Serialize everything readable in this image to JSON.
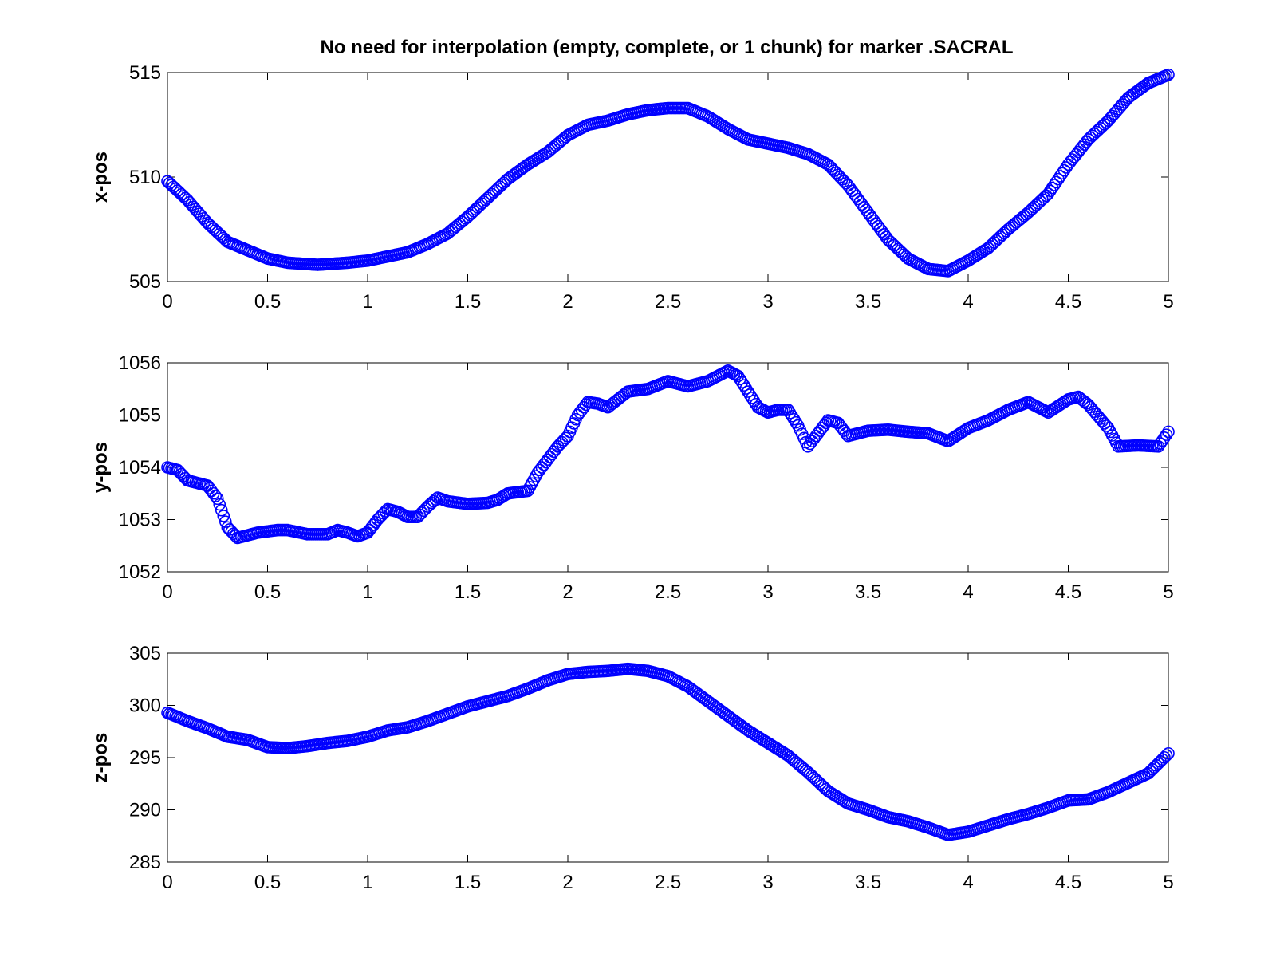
{
  "title": "No need for interpolation (empty, complete, or 1 chunk) for marker .SACRAL",
  "colors": {
    "series": "#0000ff",
    "axes": "#000000",
    "background": "#ffffff"
  },
  "chart_data": [
    {
      "type": "scatter",
      "ylabel": "x-pos",
      "xlim": [
        0,
        5
      ],
      "ylim": [
        505,
        515
      ],
      "xticks": [
        "0",
        "0.5",
        "1",
        "1.5",
        "2",
        "2.5",
        "3",
        "3.5",
        "4",
        "4.5",
        "5"
      ],
      "yticks": [
        "505",
        "510",
        "515"
      ],
      "grid": false,
      "points": [
        [
          0,
          509.8
        ],
        [
          0.1,
          508.9
        ],
        [
          0.2,
          507.8
        ],
        [
          0.3,
          506.9
        ],
        [
          0.4,
          506.5
        ],
        [
          0.5,
          506.1
        ],
        [
          0.6,
          505.9
        ],
        [
          0.75,
          505.8
        ],
        [
          0.9,
          505.9
        ],
        [
          1.0,
          506.0
        ],
        [
          1.1,
          506.2
        ],
        [
          1.2,
          506.4
        ],
        [
          1.3,
          506.8
        ],
        [
          1.4,
          507.3
        ],
        [
          1.5,
          508.1
        ],
        [
          1.6,
          509.0
        ],
        [
          1.7,
          509.9
        ],
        [
          1.8,
          510.6
        ],
        [
          1.9,
          511.2
        ],
        [
          2.0,
          512.0
        ],
        [
          2.1,
          512.5
        ],
        [
          2.2,
          512.7
        ],
        [
          2.3,
          513.0
        ],
        [
          2.4,
          513.2
        ],
        [
          2.5,
          513.3
        ],
        [
          2.6,
          513.3
        ],
        [
          2.7,
          512.9
        ],
        [
          2.8,
          512.3
        ],
        [
          2.9,
          511.8
        ],
        [
          3.0,
          511.6
        ],
        [
          3.1,
          511.4
        ],
        [
          3.2,
          511.1
        ],
        [
          3.3,
          510.6
        ],
        [
          3.4,
          509.6
        ],
        [
          3.5,
          508.3
        ],
        [
          3.6,
          507.0
        ],
        [
          3.7,
          506.1
        ],
        [
          3.8,
          505.6
        ],
        [
          3.9,
          505.5
        ],
        [
          4.0,
          506.0
        ],
        [
          4.1,
          506.6
        ],
        [
          4.2,
          507.5
        ],
        [
          4.3,
          508.3
        ],
        [
          4.4,
          509.2
        ],
        [
          4.5,
          510.6
        ],
        [
          4.6,
          511.8
        ],
        [
          4.7,
          512.7
        ],
        [
          4.8,
          513.8
        ],
        [
          4.9,
          514.5
        ],
        [
          5.0,
          514.9
        ]
      ]
    },
    {
      "type": "scatter",
      "ylabel": "y-pos",
      "xlim": [
        0,
        5
      ],
      "ylim": [
        1052,
        1056
      ],
      "xticks": [
        "0",
        "0.5",
        "1",
        "1.5",
        "2",
        "2.5",
        "3",
        "3.5",
        "4",
        "4.5",
        "5"
      ],
      "yticks": [
        "1052",
        "1053",
        "1054",
        "1055",
        "1056"
      ],
      "grid": false,
      "points": [
        [
          0,
          1054.0
        ],
        [
          0.05,
          1053.95
        ],
        [
          0.1,
          1053.75
        ],
        [
          0.15,
          1053.7
        ],
        [
          0.2,
          1053.65
        ],
        [
          0.25,
          1053.4
        ],
        [
          0.3,
          1052.85
        ],
        [
          0.35,
          1052.65
        ],
        [
          0.45,
          1052.75
        ],
        [
          0.55,
          1052.8
        ],
        [
          0.6,
          1052.8
        ],
        [
          0.7,
          1052.72
        ],
        [
          0.8,
          1052.72
        ],
        [
          0.85,
          1052.8
        ],
        [
          0.9,
          1052.75
        ],
        [
          0.95,
          1052.68
        ],
        [
          1.0,
          1052.75
        ],
        [
          1.05,
          1053.0
        ],
        [
          1.1,
          1053.2
        ],
        [
          1.15,
          1053.15
        ],
        [
          1.2,
          1053.05
        ],
        [
          1.25,
          1053.05
        ],
        [
          1.3,
          1053.25
        ],
        [
          1.35,
          1053.42
        ],
        [
          1.4,
          1053.35
        ],
        [
          1.5,
          1053.3
        ],
        [
          1.6,
          1053.32
        ],
        [
          1.65,
          1053.38
        ],
        [
          1.7,
          1053.5
        ],
        [
          1.8,
          1053.55
        ],
        [
          1.85,
          1053.9
        ],
        [
          1.9,
          1054.15
        ],
        [
          1.95,
          1054.4
        ],
        [
          2.0,
          1054.6
        ],
        [
          2.05,
          1055.0
        ],
        [
          2.1,
          1055.25
        ],
        [
          2.15,
          1055.22
        ],
        [
          2.2,
          1055.15
        ],
        [
          2.25,
          1055.3
        ],
        [
          2.3,
          1055.45
        ],
        [
          2.4,
          1055.5
        ],
        [
          2.5,
          1055.65
        ],
        [
          2.6,
          1055.55
        ],
        [
          2.7,
          1055.65
        ],
        [
          2.8,
          1055.85
        ],
        [
          2.85,
          1055.75
        ],
        [
          2.9,
          1055.45
        ],
        [
          2.95,
          1055.15
        ],
        [
          3.0,
          1055.05
        ],
        [
          3.05,
          1055.1
        ],
        [
          3.1,
          1055.1
        ],
        [
          3.15,
          1054.8
        ],
        [
          3.2,
          1054.4
        ],
        [
          3.25,
          1054.65
        ],
        [
          3.3,
          1054.9
        ],
        [
          3.35,
          1054.85
        ],
        [
          3.4,
          1054.6
        ],
        [
          3.5,
          1054.7
        ],
        [
          3.6,
          1054.72
        ],
        [
          3.7,
          1054.68
        ],
        [
          3.8,
          1054.65
        ],
        [
          3.9,
          1054.5
        ],
        [
          4.0,
          1054.75
        ],
        [
          4.1,
          1054.9
        ],
        [
          4.2,
          1055.1
        ],
        [
          4.3,
          1055.25
        ],
        [
          4.4,
          1055.05
        ],
        [
          4.5,
          1055.3
        ],
        [
          4.55,
          1055.35
        ],
        [
          4.6,
          1055.2
        ],
        [
          4.7,
          1054.75
        ],
        [
          4.75,
          1054.4
        ],
        [
          4.85,
          1054.42
        ],
        [
          4.95,
          1054.4
        ],
        [
          5.0,
          1054.68
        ]
      ]
    },
    {
      "type": "scatter",
      "ylabel": "z-pos",
      "xlim": [
        0,
        5
      ],
      "ylim": [
        285,
        305
      ],
      "xticks": [
        "0",
        "0.5",
        "1",
        "1.5",
        "2",
        "2.5",
        "3",
        "3.5",
        "4",
        "4.5",
        "5"
      ],
      "yticks": [
        "285",
        "290",
        "295",
        "300",
        "305"
      ],
      "grid": false,
      "points": [
        [
          0,
          299.3
        ],
        [
          0.1,
          298.5
        ],
        [
          0.2,
          297.8
        ],
        [
          0.3,
          297.0
        ],
        [
          0.4,
          296.7
        ],
        [
          0.5,
          296.0
        ],
        [
          0.6,
          295.9
        ],
        [
          0.7,
          296.1
        ],
        [
          0.8,
          296.4
        ],
        [
          0.9,
          296.6
        ],
        [
          1.0,
          297.0
        ],
        [
          1.1,
          297.6
        ],
        [
          1.2,
          297.9
        ],
        [
          1.3,
          298.5
        ],
        [
          1.4,
          299.2
        ],
        [
          1.5,
          299.9
        ],
        [
          1.6,
          300.4
        ],
        [
          1.7,
          300.9
        ],
        [
          1.8,
          301.6
        ],
        [
          1.9,
          302.4
        ],
        [
          2.0,
          303.0
        ],
        [
          2.1,
          303.2
        ],
        [
          2.2,
          303.3
        ],
        [
          2.3,
          303.5
        ],
        [
          2.4,
          303.3
        ],
        [
          2.5,
          302.8
        ],
        [
          2.6,
          301.8
        ],
        [
          2.7,
          300.4
        ],
        [
          2.8,
          299.0
        ],
        [
          2.9,
          297.6
        ],
        [
          3.0,
          296.4
        ],
        [
          3.1,
          295.2
        ],
        [
          3.2,
          293.6
        ],
        [
          3.3,
          291.8
        ],
        [
          3.4,
          290.6
        ],
        [
          3.5,
          290.0
        ],
        [
          3.6,
          289.3
        ],
        [
          3.7,
          288.9
        ],
        [
          3.8,
          288.3
        ],
        [
          3.9,
          287.6
        ],
        [
          4.0,
          287.9
        ],
        [
          4.1,
          288.5
        ],
        [
          4.2,
          289.1
        ],
        [
          4.3,
          289.6
        ],
        [
          4.4,
          290.2
        ],
        [
          4.5,
          290.9
        ],
        [
          4.6,
          291.0
        ],
        [
          4.7,
          291.7
        ],
        [
          4.8,
          292.6
        ],
        [
          4.9,
          293.5
        ],
        [
          5.0,
          295.4
        ]
      ]
    }
  ]
}
